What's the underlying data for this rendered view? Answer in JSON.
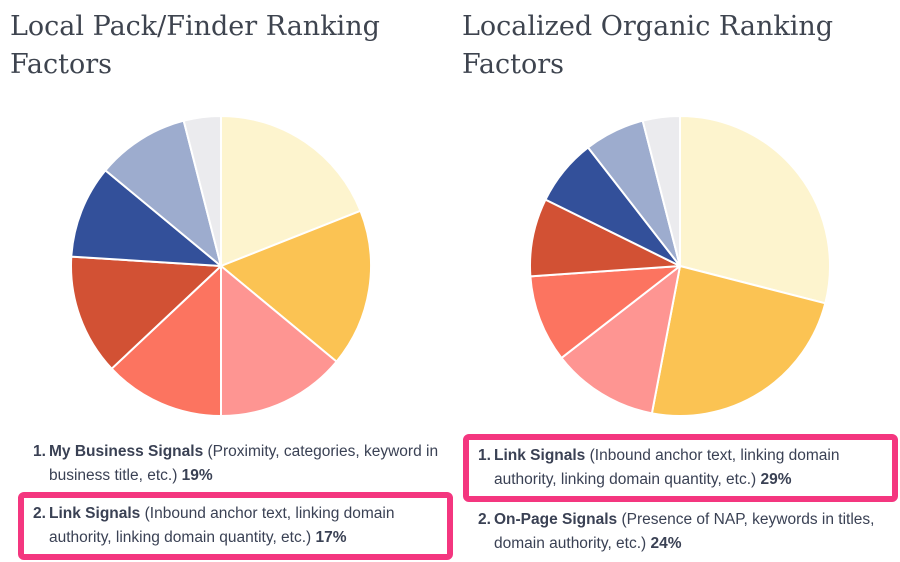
{
  "page": {
    "background": "#ffffff",
    "title_color": "#3E444F",
    "text_color": "#3A4154",
    "highlight_color": "#F4367F"
  },
  "left": {
    "title": "Local Pack/Finder Ranking Factors",
    "items": [
      {
        "num": "1.",
        "label": "My Business Signals",
        "rest1": " (Proximity, categories, keyword in",
        "rest2": "business title, etc.) ",
        "pct": "19%",
        "highlighted": false
      },
      {
        "num": "2.",
        "label": "Link Signals",
        "rest1": " (Inbound anchor text, linking domain",
        "rest2": "authority, linking domain quantity, etc.) ",
        "pct": "17%",
        "highlighted": true
      }
    ]
  },
  "right": {
    "title": "Localized Organic Ranking Factors",
    "items": [
      {
        "num": "1.",
        "label": "Link Signals",
        "rest1": " (Inbound anchor text, linking domain",
        "rest2": "authority, linking domain quantity, etc.) ",
        "pct": "29%",
        "highlighted": true
      },
      {
        "num": "2.",
        "label": "On-Page Signals",
        "rest1": " (Presence of NAP, keywords in titles,",
        "rest2": "domain authority, etc.) ",
        "pct": "24%",
        "highlighted": false
      }
    ]
  },
  "chart_data": [
    {
      "type": "pie",
      "title": "Local Pack/Finder Ranking Factors",
      "start_angle_deg": 0,
      "direction": "clockwise",
      "slices": [
        {
          "label": "My Business Signals",
          "value": 19,
          "color": "#FDF4CE"
        },
        {
          "label": "Link Signals",
          "value": 17,
          "color": "#FBC353"
        },
        {
          "label": "",
          "value": 14,
          "color": "#FE9592"
        },
        {
          "label": "",
          "value": 13,
          "color": "#FC7460"
        },
        {
          "label": "",
          "value": 13,
          "color": "#D25134"
        },
        {
          "label": "",
          "value": 10,
          "color": "#33509A"
        },
        {
          "label": "",
          "value": 10,
          "color": "#9DACCE"
        },
        {
          "label": "",
          "value": 4,
          "color": "#EBEBEE"
        }
      ]
    },
    {
      "type": "pie",
      "title": "Localized Organic Ranking Factors",
      "start_angle_deg": 0,
      "direction": "clockwise",
      "slices": [
        {
          "label": "Link Signals",
          "value": 29,
          "color": "#FDF4CE"
        },
        {
          "label": "On-Page Signals",
          "value": 24,
          "color": "#FBC353"
        },
        {
          "label": "",
          "value": 11.5,
          "color": "#FE9592"
        },
        {
          "label": "",
          "value": 9.4,
          "color": "#FC7460"
        },
        {
          "label": "",
          "value": 8.4,
          "color": "#D25134"
        },
        {
          "label": "",
          "value": 7.2,
          "color": "#33509A"
        },
        {
          "label": "",
          "value": 6.5,
          "color": "#9DACCE"
        },
        {
          "label": "",
          "value": 4,
          "color": "#EBEBEE"
        }
      ]
    }
  ]
}
